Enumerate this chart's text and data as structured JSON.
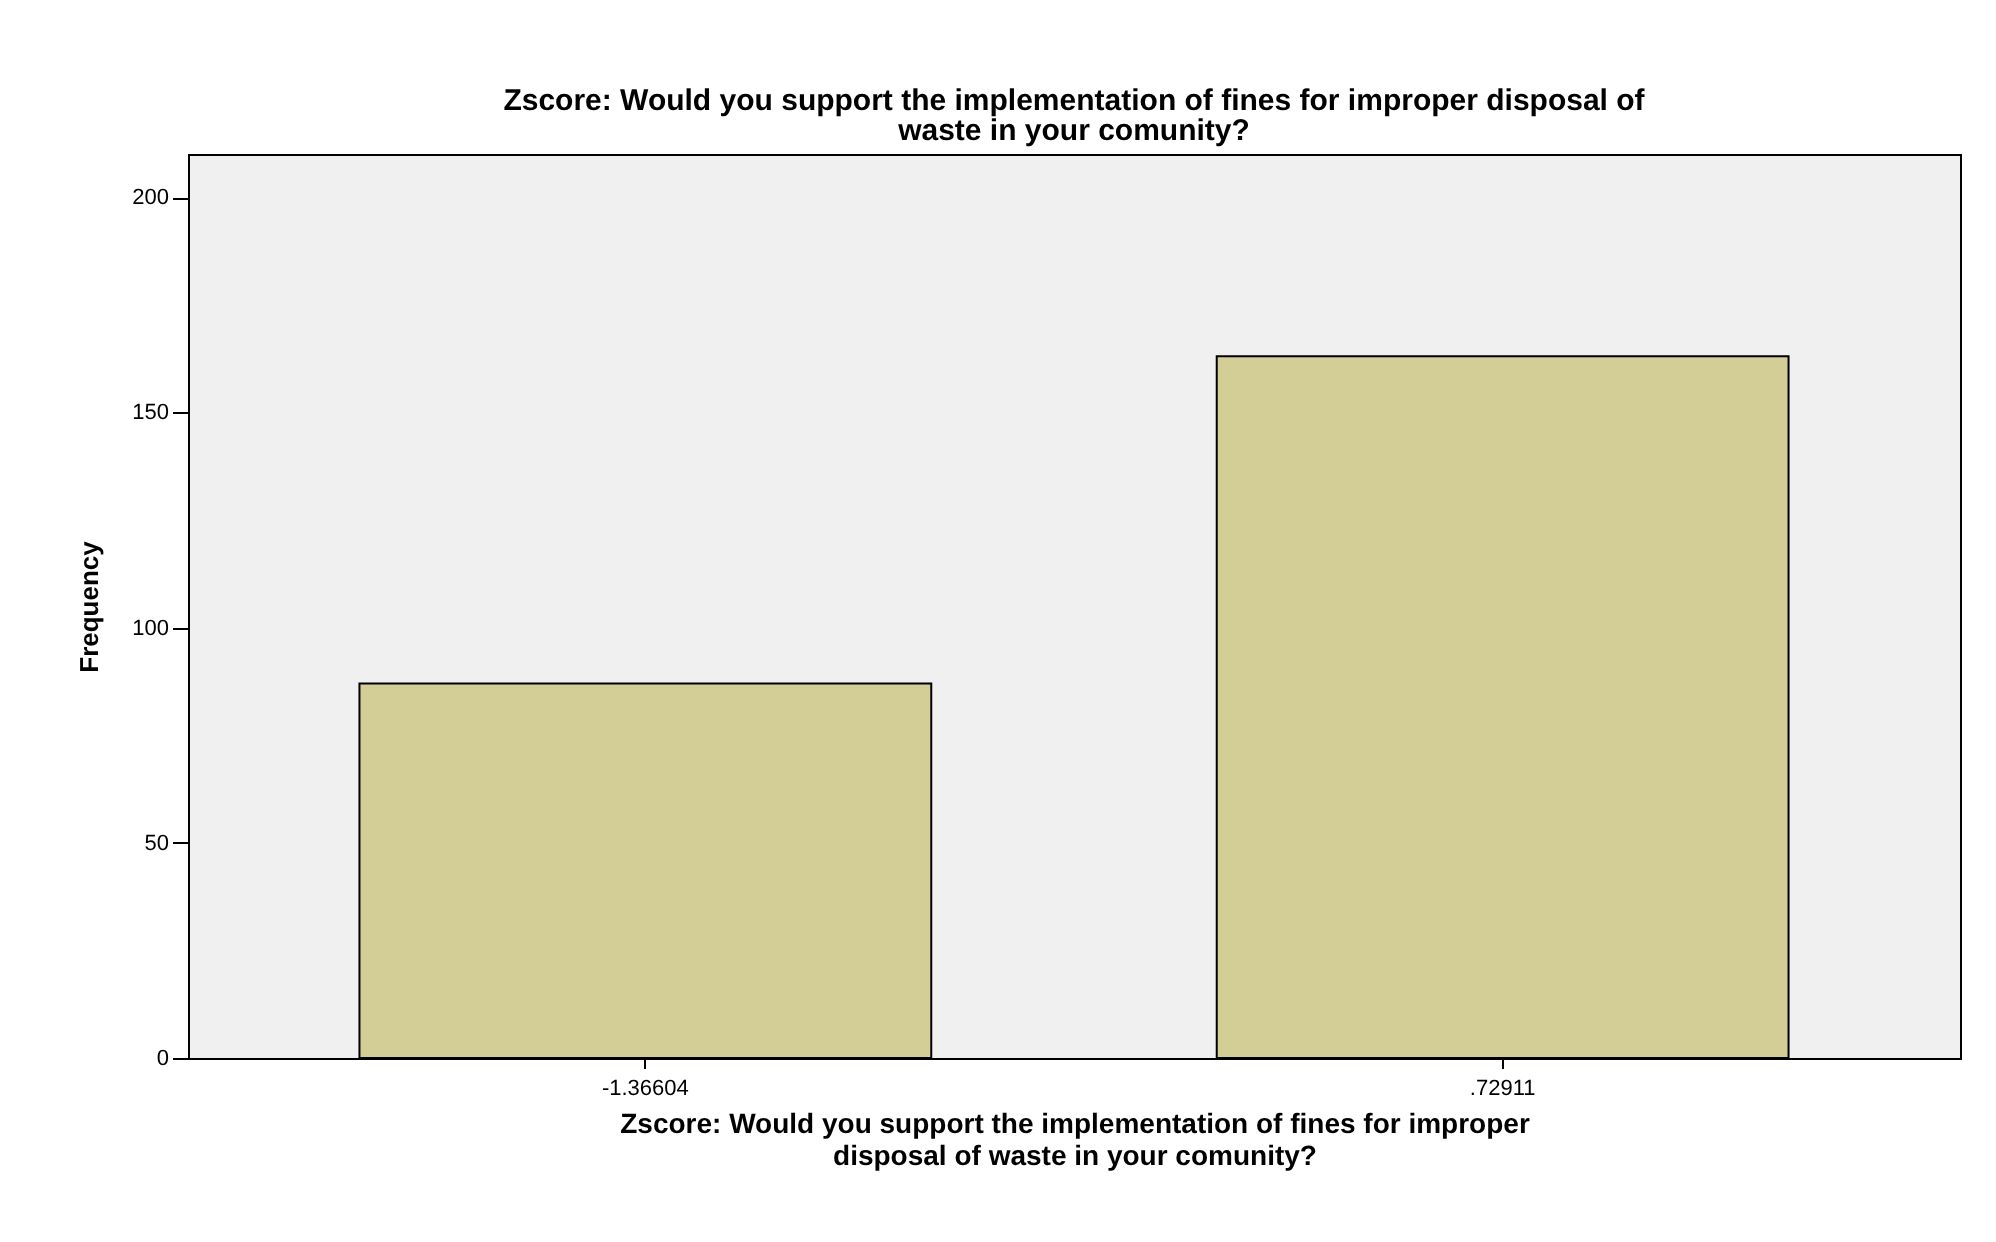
{
  "chart_data": {
    "type": "bar",
    "title": "Zscore:  Would you support the implementation of fines for improper disposal of waste in your comunity?",
    "xlabel": "Zscore:  Would you support the implementation of fines for improper disposal of waste in your comunity?",
    "ylabel": "Frequency",
    "categories": [
      "-1.36604",
      ".72911"
    ],
    "values": [
      87,
      163
    ],
    "color": "#d3cd96",
    "ylim": [
      0,
      210
    ],
    "yticks": [
      0,
      50,
      100,
      150,
      200
    ],
    "grid": false
  }
}
